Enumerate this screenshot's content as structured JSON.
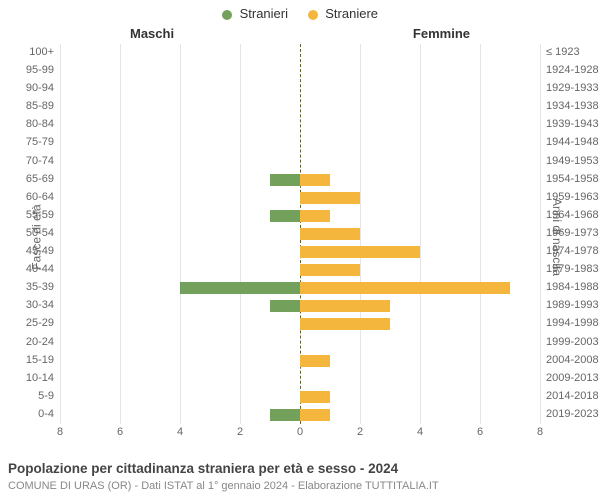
{
  "chart": {
    "type": "population-pyramid",
    "background_color": "#ffffff",
    "legend": {
      "items": [
        {
          "label": "Stranieri",
          "color": "#73a05a"
        },
        {
          "label": "Straniere",
          "color": "#f5b63e"
        }
      ]
    },
    "columns": {
      "left": "Maschi",
      "right": "Femmine"
    },
    "y_left_title": "Fasce di età",
    "y_right_title": "Anni di nascita",
    "x_ticks": [
      8,
      6,
      4,
      2,
      0,
      2,
      4,
      6,
      8
    ],
    "x_max": 8,
    "grid_color": "#e5e5e5",
    "center_line_color": "#606030",
    "bar_color_m": "#73a05a",
    "bar_color_f": "#f5b63e",
    "label_fontsize": 11,
    "label_color": "#666666",
    "rows": [
      {
        "age": "100+",
        "birth": "≤ 1923",
        "m": 0,
        "f": 0
      },
      {
        "age": "95-99",
        "birth": "1924-1928",
        "m": 0,
        "f": 0
      },
      {
        "age": "90-94",
        "birth": "1929-1933",
        "m": 0,
        "f": 0
      },
      {
        "age": "85-89",
        "birth": "1934-1938",
        "m": 0,
        "f": 0
      },
      {
        "age": "80-84",
        "birth": "1939-1943",
        "m": 0,
        "f": 0
      },
      {
        "age": "75-79",
        "birth": "1944-1948",
        "m": 0,
        "f": 0
      },
      {
        "age": "70-74",
        "birth": "1949-1953",
        "m": 0,
        "f": 0
      },
      {
        "age": "65-69",
        "birth": "1954-1958",
        "m": 1,
        "f": 1
      },
      {
        "age": "60-64",
        "birth": "1959-1963",
        "m": 0,
        "f": 2
      },
      {
        "age": "55-59",
        "birth": "1964-1968",
        "m": 1,
        "f": 1
      },
      {
        "age": "50-54",
        "birth": "1969-1973",
        "m": 0,
        "f": 2
      },
      {
        "age": "45-49",
        "birth": "1974-1978",
        "m": 0,
        "f": 4
      },
      {
        "age": "40-44",
        "birth": "1979-1983",
        "m": 0,
        "f": 2
      },
      {
        "age": "35-39",
        "birth": "1984-1988",
        "m": 4,
        "f": 7
      },
      {
        "age": "30-34",
        "birth": "1989-1993",
        "m": 1,
        "f": 3
      },
      {
        "age": "25-29",
        "birth": "1994-1998",
        "m": 0,
        "f": 3
      },
      {
        "age": "20-24",
        "birth": "1999-2003",
        "m": 0,
        "f": 0
      },
      {
        "age": "15-19",
        "birth": "2004-2008",
        "m": 0,
        "f": 1
      },
      {
        "age": "10-14",
        "birth": "2009-2013",
        "m": 0,
        "f": 0
      },
      {
        "age": "5-9",
        "birth": "2014-2018",
        "m": 0,
        "f": 1
      },
      {
        "age": "0-4",
        "birth": "2019-2023",
        "m": 1,
        "f": 1
      }
    ],
    "title": "Popolazione per cittadinanza straniera per età e sesso - 2024",
    "subtitle": "COMUNE DI URAS (OR) - Dati ISTAT al 1° gennaio 2024 - Elaborazione TUTTITALIA.IT"
  }
}
